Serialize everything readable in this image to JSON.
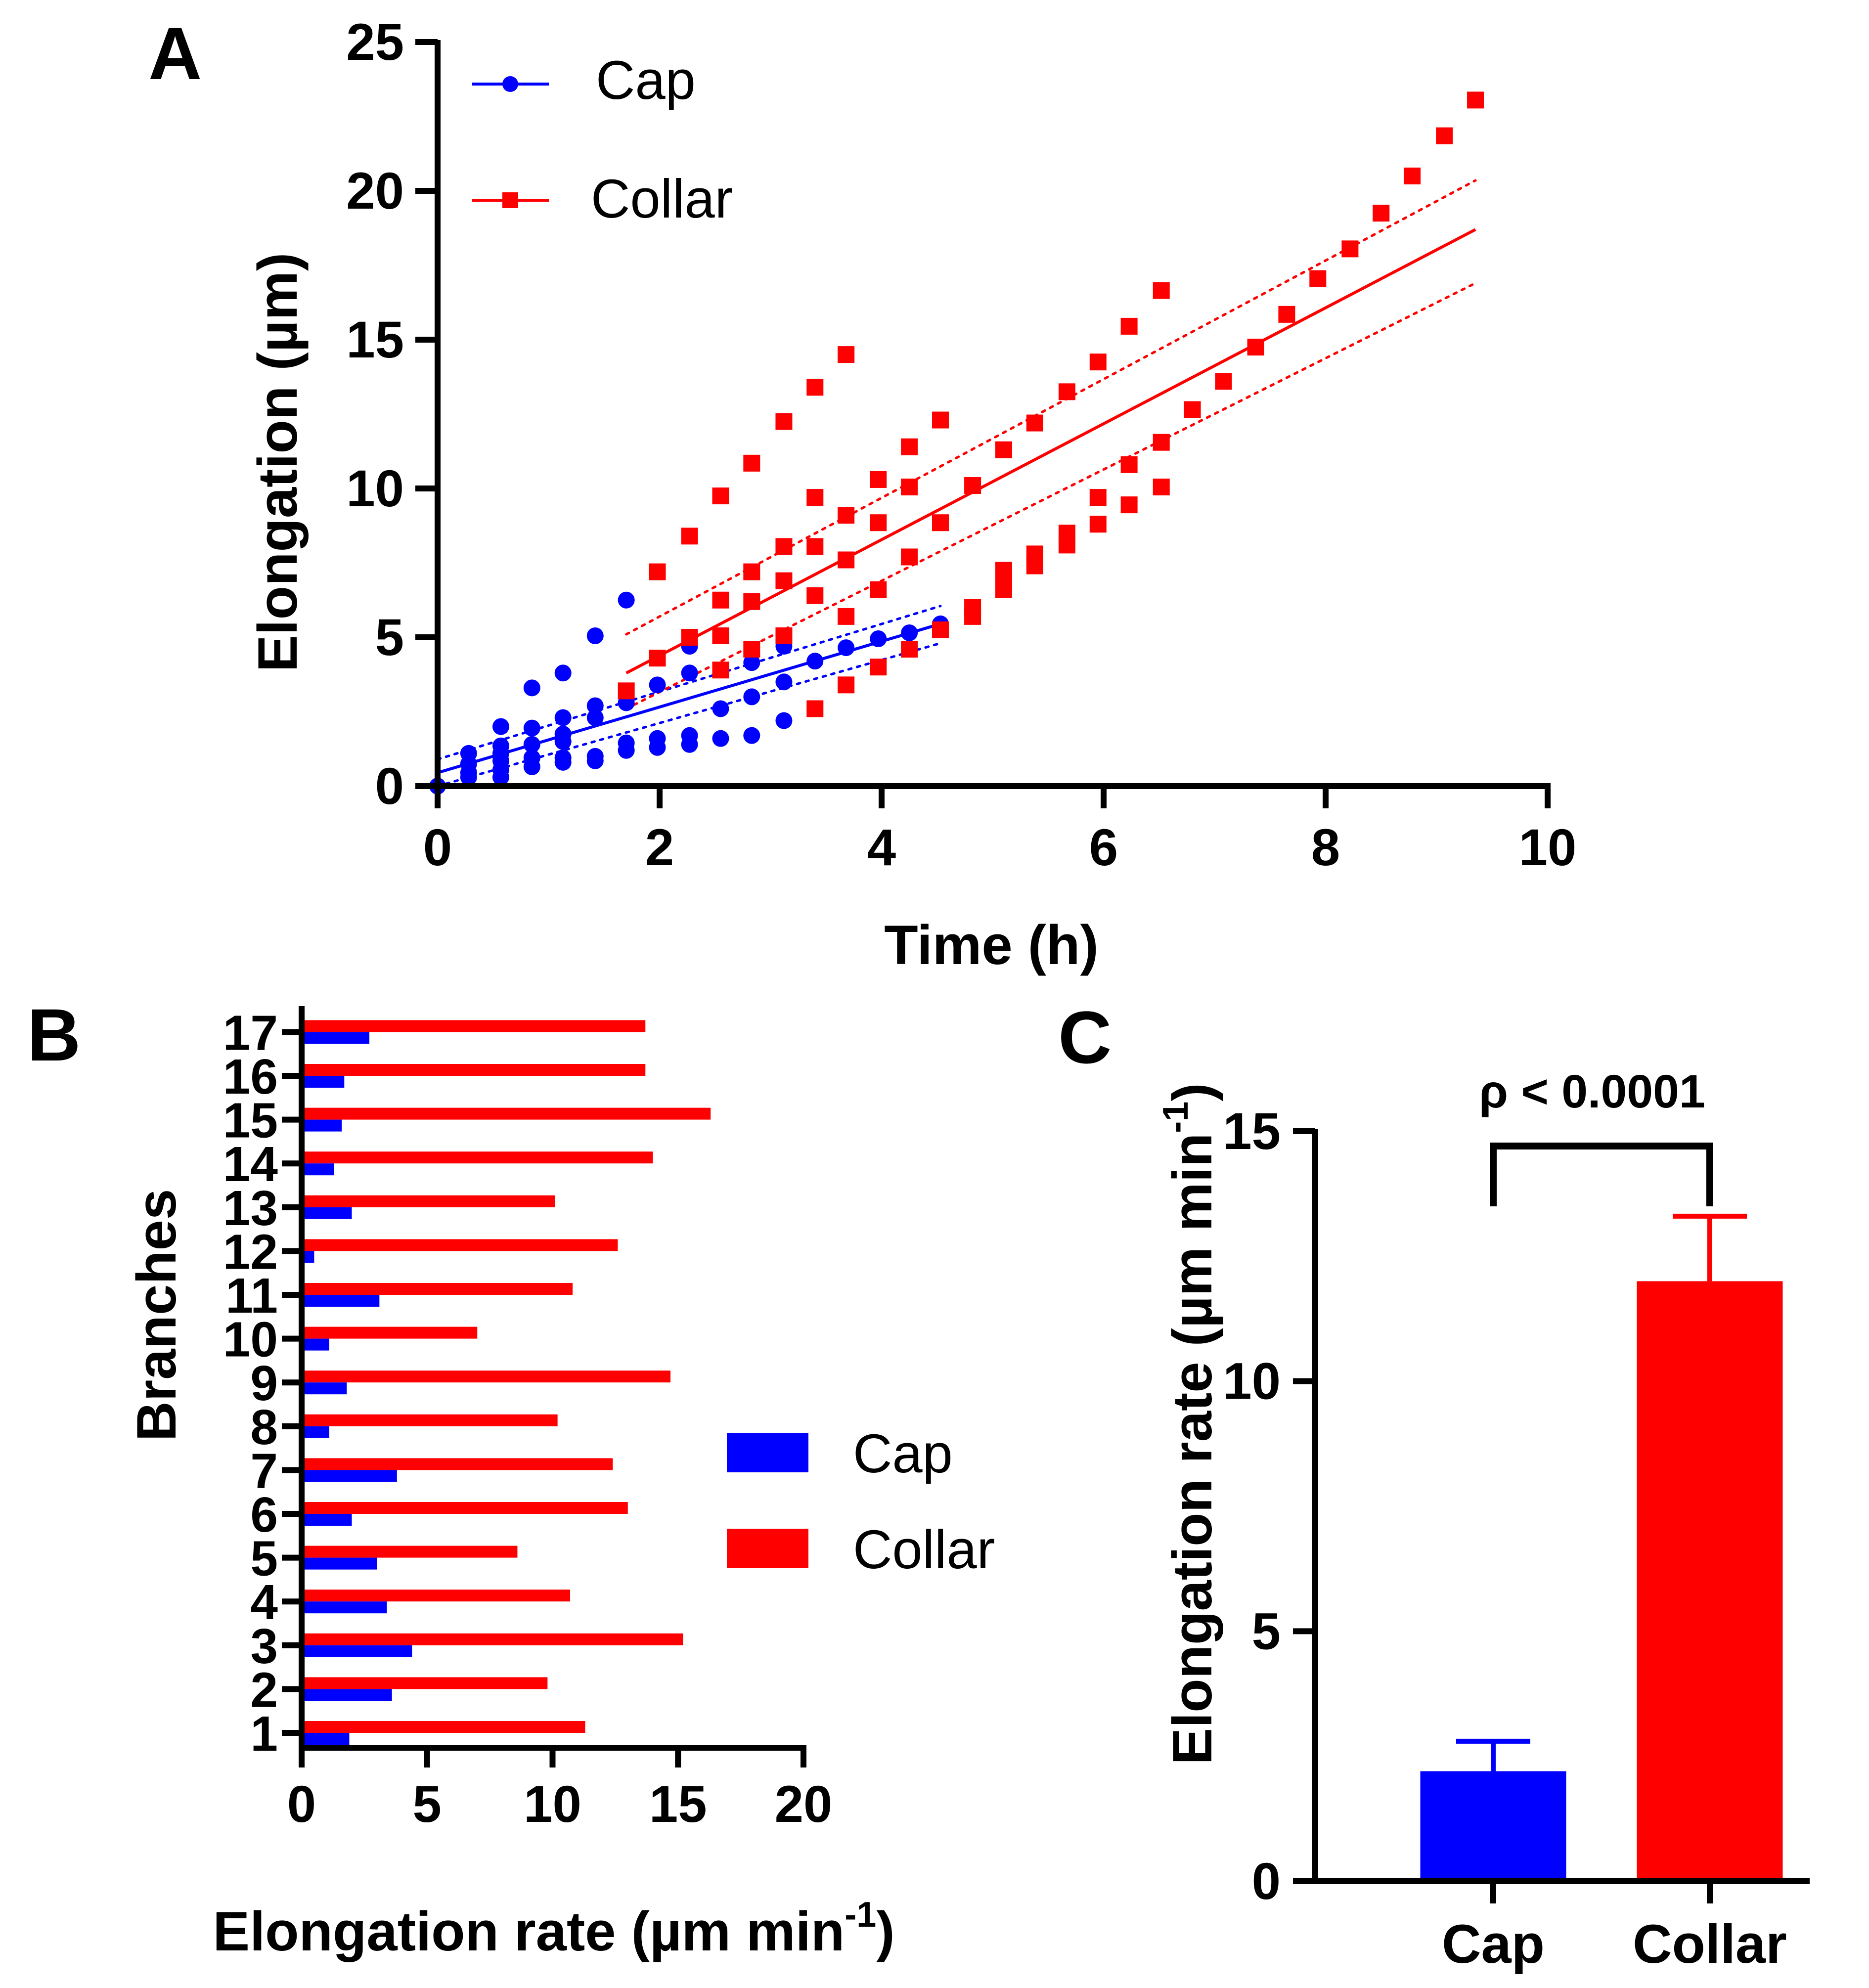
{
  "colors": {
    "cap": "#0000ff",
    "collar": "#ff0000",
    "axis": "#000000",
    "background": "#ffffff"
  },
  "chart_data": [
    {
      "id": "A",
      "panel_label": "A",
      "type": "scatter",
      "title": "",
      "xlabel": "Time (h)",
      "ylabel": "Elongation (µm)",
      "xlim": [
        0,
        10
      ],
      "ylim": [
        0,
        25
      ],
      "xticks": [
        0,
        2,
        4,
        6,
        8,
        10
      ],
      "yticks": [
        0,
        5,
        10,
        15,
        20,
        25
      ],
      "legend": {
        "position": "top-left",
        "entries": [
          "Cap",
          "Collar"
        ]
      },
      "series": [
        {
          "name": "Cap",
          "marker": "circle",
          "color": "#0000ff",
          "points": [
            [
              0,
              0
            ],
            [
              0.28,
              1.1
            ],
            [
              0.28,
              0.75
            ],
            [
              0.28,
              0.45
            ],
            [
              0.28,
              0.3
            ],
            [
              0.57,
              2.0
            ],
            [
              0.57,
              1.35
            ],
            [
              0.57,
              1.1
            ],
            [
              0.57,
              0.85
            ],
            [
              0.57,
              0.55
            ],
            [
              0.57,
              0.3
            ],
            [
              0.85,
              3.3
            ],
            [
              0.85,
              1.95
            ],
            [
              0.85,
              1.4
            ],
            [
              0.85,
              0.95
            ],
            [
              0.85,
              0.65
            ],
            [
              1.13,
              3.8
            ],
            [
              1.13,
              2.3
            ],
            [
              1.13,
              1.75
            ],
            [
              1.13,
              1.5
            ],
            [
              1.13,
              0.95
            ],
            [
              1.13,
              0.8
            ],
            [
              1.42,
              5.05
            ],
            [
              1.42,
              2.7
            ],
            [
              1.42,
              2.3
            ],
            [
              1.42,
              1.0
            ],
            [
              1.42,
              0.85
            ],
            [
              1.7,
              6.25
            ],
            [
              1.7,
              2.8
            ],
            [
              1.7,
              1.45
            ],
            [
              1.7,
              1.2
            ],
            [
              1.98,
              3.4
            ],
            [
              1.98,
              1.6
            ],
            [
              1.98,
              1.3
            ],
            [
              2.27,
              4.7
            ],
            [
              2.27,
              3.8
            ],
            [
              2.27,
              1.7
            ],
            [
              2.27,
              1.4
            ],
            [
              2.55,
              2.6
            ],
            [
              2.55,
              1.6
            ],
            [
              2.83,
              4.15
            ],
            [
              2.83,
              3.0
            ],
            [
              2.83,
              1.7
            ],
            [
              3.12,
              4.7
            ],
            [
              3.12,
              3.5
            ],
            [
              3.12,
              2.2
            ],
            [
              3.4,
              4.2
            ],
            [
              3.68,
              4.65
            ],
            [
              3.97,
              4.95
            ],
            [
              4.25,
              5.15
            ],
            [
              4.53,
              5.45
            ]
          ],
          "fit": {
            "x0": 0,
            "y0": 0.45,
            "x1": 4.53,
            "y1": 5.45
          },
          "ci_upper": [
            [
              0,
              0.9
            ],
            [
              4.53,
              6.05
            ]
          ],
          "ci_lower": [
            [
              0,
              0.0
            ],
            [
              4.53,
              4.8
            ]
          ]
        },
        {
          "name": "Collar",
          "marker": "square",
          "color": "#ff0000",
          "points": [
            [
              1.7,
              3.2
            ],
            [
              1.98,
              7.2
            ],
            [
              1.98,
              4.3
            ],
            [
              2.27,
              8.4
            ],
            [
              2.27,
              5.0
            ],
            [
              2.55,
              9.75
            ],
            [
              2.55,
              6.25
            ],
            [
              2.55,
              5.05
            ],
            [
              2.55,
              3.9
            ],
            [
              2.83,
              10.85
            ],
            [
              2.83,
              7.2
            ],
            [
              2.83,
              6.2
            ],
            [
              2.83,
              4.6
            ],
            [
              3.12,
              12.25
            ],
            [
              3.12,
              8.05
            ],
            [
              3.12,
              6.9
            ],
            [
              3.12,
              5.05
            ],
            [
              3.4,
              13.4
            ],
            [
              3.4,
              9.7
            ],
            [
              3.4,
              8.05
            ],
            [
              3.4,
              6.4
            ],
            [
              3.4,
              2.6
            ],
            [
              3.68,
              14.5
            ],
            [
              3.68,
              9.1
            ],
            [
              3.68,
              7.6
            ],
            [
              3.68,
              5.7
            ],
            [
              3.68,
              3.4
            ],
            [
              3.97,
              10.3
            ],
            [
              3.97,
              8.85
            ],
            [
              3.97,
              6.6
            ],
            [
              3.97,
              4.0
            ],
            [
              4.25,
              11.4
            ],
            [
              4.25,
              10.05
            ],
            [
              4.25,
              7.7
            ],
            [
              4.25,
              4.6
            ],
            [
              4.53,
              12.3
            ],
            [
              4.53,
              8.85
            ],
            [
              4.53,
              5.25
            ],
            [
              4.82,
              10.1
            ],
            [
              4.82,
              6.0
            ],
            [
              4.82,
              5.7
            ],
            [
              5.1,
              11.3
            ],
            [
              5.1,
              7.25
            ],
            [
              5.1,
              6.95
            ],
            [
              5.1,
              6.6
            ],
            [
              5.38,
              12.2
            ],
            [
              5.38,
              7.8
            ],
            [
              5.38,
              7.4
            ],
            [
              5.67,
              13.25
            ],
            [
              5.67,
              8.5
            ],
            [
              5.67,
              8.1
            ],
            [
              5.95,
              14.25
            ],
            [
              5.95,
              9.7
            ],
            [
              5.95,
              8.8
            ],
            [
              6.23,
              15.45
            ],
            [
              6.23,
              10.8
            ],
            [
              6.23,
              9.45
            ],
            [
              6.52,
              16.65
            ],
            [
              6.52,
              11.55
            ],
            [
              6.52,
              10.05
            ],
            [
              6.8,
              12.65
            ],
            [
              7.08,
              13.6
            ],
            [
              7.37,
              14.75
            ],
            [
              7.65,
              15.85
            ],
            [
              7.93,
              17.05
            ],
            [
              8.22,
              18.05
            ],
            [
              8.5,
              19.25
            ],
            [
              8.78,
              20.5
            ],
            [
              9.07,
              21.85
            ],
            [
              9.35,
              23.05
            ]
          ],
          "fit": {
            "x0": 1.7,
            "y0": 3.8,
            "x1": 9.35,
            "y1": 18.7
          },
          "ci_upper": [
            [
              1.7,
              5.1
            ],
            [
              9.35,
              20.35
            ]
          ],
          "ci_lower": [
            [
              1.7,
              2.6
            ],
            [
              9.35,
              16.9
            ]
          ]
        }
      ]
    },
    {
      "id": "B",
      "panel_label": "B",
      "type": "bar",
      "orientation": "horizontal",
      "title": "",
      "xlabel": "Elongation rate (µm min",
      "xlabel_superscript": "-1",
      "xlabel_suffix": ")",
      "ylabel": "Branches",
      "xlim": [
        0,
        20
      ],
      "xticks": [
        0,
        5,
        10,
        15,
        20
      ],
      "categories": [
        "1",
        "2",
        "3",
        "4",
        "5",
        "6",
        "7",
        "8",
        "9",
        "10",
        "11",
        "12",
        "13",
        "14",
        "15",
        "16",
        "17"
      ],
      "legend": {
        "position": "center-right",
        "entries": [
          "Cap",
          "Collar"
        ]
      },
      "series": [
        {
          "name": "Cap",
          "color": "#0000ff",
          "values": [
            1.9,
            3.6,
            4.4,
            3.4,
            3.0,
            2.0,
            3.8,
            1.1,
            1.8,
            1.1,
            3.1,
            0.5,
            2.0,
            1.3,
            1.6,
            1.7,
            2.7
          ]
        },
        {
          "name": "Collar",
          "color": "#ff0000",
          "values": [
            11.3,
            9.8,
            15.2,
            10.7,
            8.6,
            13.0,
            12.4,
            10.2,
            14.7,
            7.0,
            10.8,
            12.6,
            10.1,
            14.0,
            16.3,
            13.7,
            13.7
          ]
        }
      ]
    },
    {
      "id": "C",
      "panel_label": "C",
      "type": "bar",
      "title": "",
      "xlabel": "",
      "ylabel": "Elongation rate (µm min",
      "ylabel_superscript": "-1",
      "ylabel_suffix": ")",
      "ylim": [
        0,
        15
      ],
      "yticks": [
        0,
        5,
        10,
        15
      ],
      "categories": [
        "Cap",
        "Collar"
      ],
      "values": [
        2.2,
        12.0
      ],
      "errors": [
        0.6,
        1.3
      ],
      "bar_colors": [
        "#0000ff",
        "#ff0000"
      ],
      "significance": "ρ < 0.0001"
    }
  ]
}
